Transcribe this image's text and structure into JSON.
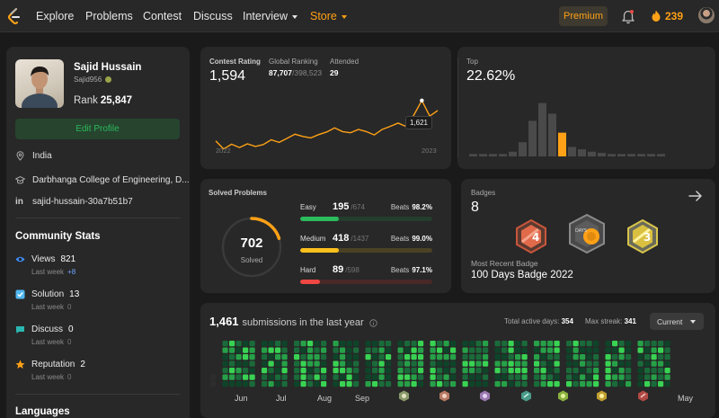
{
  "nav": {
    "items": [
      "Explore",
      "Problems",
      "Contest",
      "Discuss",
      "Interview",
      "Store"
    ],
    "premium": "Premium",
    "streak": "239"
  },
  "profile": {
    "name": "Sajid Hussain",
    "username": "Sajid956",
    "rank_label": "Rank",
    "rank": "25,847",
    "edit_button": "Edit Profile",
    "location": "India",
    "school": "Darbhanga College of Engineering, D...",
    "linkedin": "sajid-hussain-30a7b51b7"
  },
  "community": {
    "title": "Community Stats",
    "stats": [
      {
        "label": "Views",
        "value": "821",
        "sub": "Last week",
        "delta": "+8"
      },
      {
        "label": "Solution",
        "value": "13",
        "sub": "Last week",
        "delta": "0"
      },
      {
        "label": "Discuss",
        "value": "0",
        "sub": "Last week",
        "delta": "0"
      },
      {
        "label": "Reputation",
        "value": "2",
        "sub": "Last week",
        "delta": "0"
      }
    ],
    "languages_title": "Languages"
  },
  "contest": {
    "rating_label": "Contest Rating",
    "rating": "1,594",
    "global_label": "Global Ranking",
    "global_rank": "87,707",
    "global_total": "/398,523",
    "attended_label": "Attended",
    "attended": "29",
    "x_start": "2022",
    "x_end": "2023",
    "tooltip": "1,621",
    "top_label": "Top",
    "top_value": "22.62%"
  },
  "chart_data": [
    {
      "type": "line",
      "title": "Contest Rating",
      "x": [
        "2022",
        "",
        "",
        "",
        "",
        "",
        "",
        "",
        "",
        "",
        "",
        "",
        "",
        "",
        "",
        "",
        "",
        "",
        "",
        "",
        "",
        "",
        "",
        "",
        "",
        "",
        "",
        "",
        "2023"
      ],
      "values": [
        1512,
        1490,
        1503,
        1494,
        1504,
        1497,
        1502,
        1515,
        1508,
        1519,
        1530,
        1524,
        1520,
        1529,
        1536,
        1547,
        1537,
        1534,
        1543,
        1537,
        1528,
        1543,
        1551,
        1560,
        1551,
        1582,
        1621,
        1579,
        1594
      ],
      "ylim": [
        1470,
        1640
      ]
    },
    {
      "type": "bar",
      "title": "Top",
      "values": [
        2,
        2,
        2,
        2,
        4,
        12,
        30,
        45,
        36,
        20,
        8,
        6,
        4,
        3,
        2,
        2,
        2,
        2,
        2,
        2
      ],
      "highlight_index": 9,
      "ylim": [
        0,
        50
      ]
    }
  ],
  "solved": {
    "title": "Solved Problems",
    "total": "702",
    "total_label": "Solved",
    "ring_fraction": 0.2,
    "difficulties": [
      {
        "name": "Easy",
        "solved": "195",
        "total": "/674",
        "beats_label": "Beats",
        "beats": "98.2%",
        "fraction": 0.29,
        "color": "#2cbb5d",
        "track": "#243d2d"
      },
      {
        "name": "Medium",
        "solved": "418",
        "total": "/1437",
        "beats_label": "Beats",
        "beats": "99.0%",
        "fraction": 0.29,
        "color": "#ffc01e",
        "track": "#4b4224"
      },
      {
        "name": "Hard",
        "solved": "89",
        "total": "/598",
        "beats_label": "Beats",
        "beats": "97.1%",
        "fraction": 0.15,
        "color": "#ef4743",
        "track": "#4a2828"
      }
    ]
  },
  "badges": {
    "title": "Badges",
    "count": "8",
    "recent_label": "Most Recent Badge",
    "recent": "100 Days Badge 2022"
  },
  "submissions": {
    "count": "1,461",
    "label": "submissions in the last year",
    "active_label": "Total active days:",
    "active": "354",
    "streak_label": "Max streak:",
    "streak": "341",
    "dropdown": "Current",
    "months": [
      "Jun",
      "Jul",
      "Aug",
      "Sep",
      "May"
    ]
  },
  "colors": {
    "accent": "#ffa116",
    "easy": "#2cbb5d",
    "medium": "#ffc01e",
    "hard": "#ef4743"
  }
}
